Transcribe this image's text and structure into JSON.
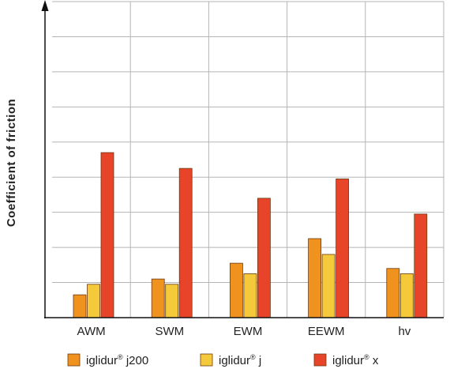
{
  "chart_data": {
    "type": "bar",
    "title": "",
    "xlabel": "",
    "ylabel": "Coefficient of friction",
    "categories": [
      "AWM",
      "SWM",
      "EWM",
      "EEWM",
      "hv"
    ],
    "series": [
      {
        "name": "iglidur® j200",
        "base": "iglidur",
        "sup": "®",
        "suffix": " j200",
        "color": "#f0921e",
        "values": [
          0.65,
          1.1,
          1.55,
          2.25,
          1.4
        ]
      },
      {
        "name": "iglidur® j",
        "base": "iglidur",
        "sup": "®",
        "suffix": " j",
        "color": "#f4c93a",
        "values": [
          0.95,
          0.95,
          1.25,
          1.8,
          1.25
        ]
      },
      {
        "name": "iglidur® x",
        "base": "iglidur",
        "sup": "®",
        "suffix": " x",
        "color": "#e8442a",
        "values": [
          4.7,
          4.25,
          3.4,
          3.95,
          2.95
        ]
      }
    ],
    "ylim": [
      0,
      9
    ],
    "y_tick_labels": "none",
    "grid": true,
    "legend": "bottom",
    "colors": {
      "grid": "#b5b5b5",
      "axis": "#111111",
      "bar_outline": "#6a3a14"
    }
  }
}
